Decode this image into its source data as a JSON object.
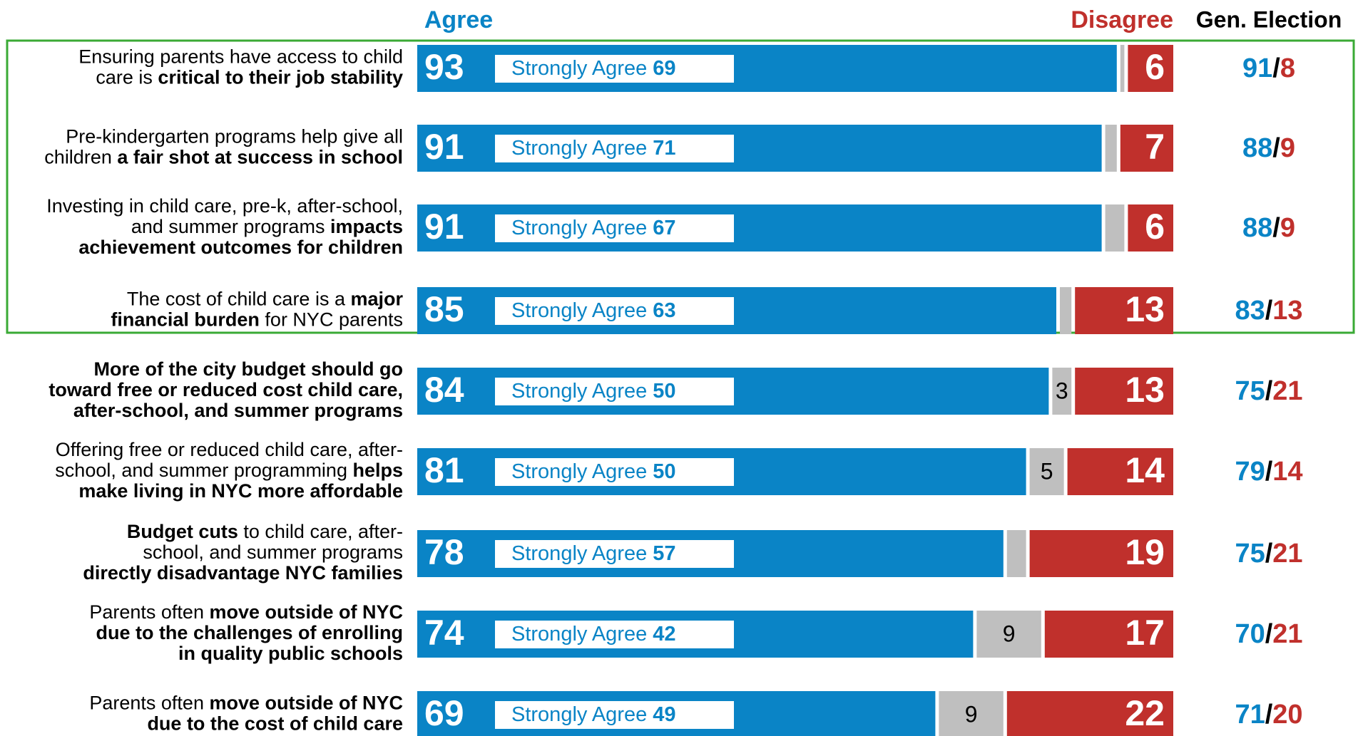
{
  "chart_data": {
    "type": "stacked-bar-horizontal",
    "categories": [
      [
        [
          {
            "text": "Ensuring parents have access to child",
            "bold": false
          }
        ],
        [
          {
            "text": "care is ",
            "bold": false
          },
          {
            "text": "critical to their job stability",
            "bold": true
          }
        ]
      ],
      [
        [
          {
            "text": "Pre-kindergarten programs help give all",
            "bold": false
          }
        ],
        [
          {
            "text": "children ",
            "bold": false
          },
          {
            "text": "a fair shot at success in school",
            "bold": true
          }
        ]
      ],
      [
        [
          {
            "text": "Investing in child care, pre-k, after-school,",
            "bold": false
          }
        ],
        [
          {
            "text": "and summer programs ",
            "bold": false
          },
          {
            "text": "impacts",
            "bold": true
          }
        ],
        [
          {
            "text": "achievement outcomes for children",
            "bold": true
          }
        ]
      ],
      [
        [
          {
            "text": "The cost of child care is a ",
            "bold": false
          },
          {
            "text": "major",
            "bold": true
          }
        ],
        [
          {
            "text": "financial burden",
            "bold": true
          },
          {
            "text": " for NYC parents",
            "bold": false
          }
        ]
      ],
      [
        [
          {
            "text": "More of the city budget should go",
            "bold": true
          }
        ],
        [
          {
            "text": "toward free or reduced cost child care,",
            "bold": true
          }
        ],
        [
          {
            "text": "after-school, and summer programs",
            "bold": true
          }
        ]
      ],
      [
        [
          {
            "text": "Offering free or reduced child care, after-",
            "bold": false
          }
        ],
        [
          {
            "text": "school, and summer programming ",
            "bold": false
          },
          {
            "text": "helps",
            "bold": true
          }
        ],
        [
          {
            "text": "make living in NYC more affordable",
            "bold": true
          }
        ]
      ],
      [
        [
          {
            "text": "Budget cuts",
            "bold": true
          },
          {
            "text": " to child care, after-",
            "bold": false
          }
        ],
        [
          {
            "text": "school, and summer programs",
            "bold": false
          }
        ],
        [
          {
            "text": "directly disadvantage NYC families",
            "bold": true
          }
        ]
      ],
      [
        [
          {
            "text": "Parents often ",
            "bold": false
          },
          {
            "text": "move outside of NYC",
            "bold": true
          }
        ],
        [
          {
            "text": "due to the challenges of enrolling",
            "bold": true
          }
        ],
        [
          {
            "text": "in quality public schools",
            "bold": true
          }
        ]
      ],
      [
        [
          {
            "text": "Parents often ",
            "bold": false
          },
          {
            "text": "move outside of NYC",
            "bold": true
          }
        ],
        [
          {
            "text": "due to the cost of child care",
            "bold": true
          }
        ]
      ]
    ],
    "series": [
      {
        "name": "Agree",
        "color": "#0a84c6",
        "values": [
          93,
          91,
          91,
          85,
          84,
          81,
          78,
          74,
          69
        ]
      },
      {
        "color": "#bfbfbf",
        "values": [
          1,
          2,
          3,
          2,
          3,
          5,
          3,
          9,
          9
        ],
        "value_labels": [
          null,
          null,
          null,
          null,
          3,
          5,
          null,
          9,
          9
        ]
      },
      {
        "name": "Disagree",
        "color": "#c0302c",
        "values": [
          6,
          7,
          6,
          13,
          13,
          14,
          19,
          17,
          22
        ]
      }
    ],
    "strongly_agree": {
      "name": "Strongly Agree",
      "values": [
        69,
        71,
        67,
        63,
        50,
        50,
        57,
        42,
        49
      ]
    },
    "gen_election": {
      "title": "Gen. Election",
      "separator": "/",
      "agree": [
        91,
        88,
        88,
        83,
        75,
        79,
        75,
        70,
        71
      ],
      "disagree": [
        8,
        9,
        9,
        13,
        21,
        14,
        21,
        21,
        20
      ]
    },
    "xlim": [
      0,
      100
    ],
    "highlight_color": "#3aaa35"
  }
}
